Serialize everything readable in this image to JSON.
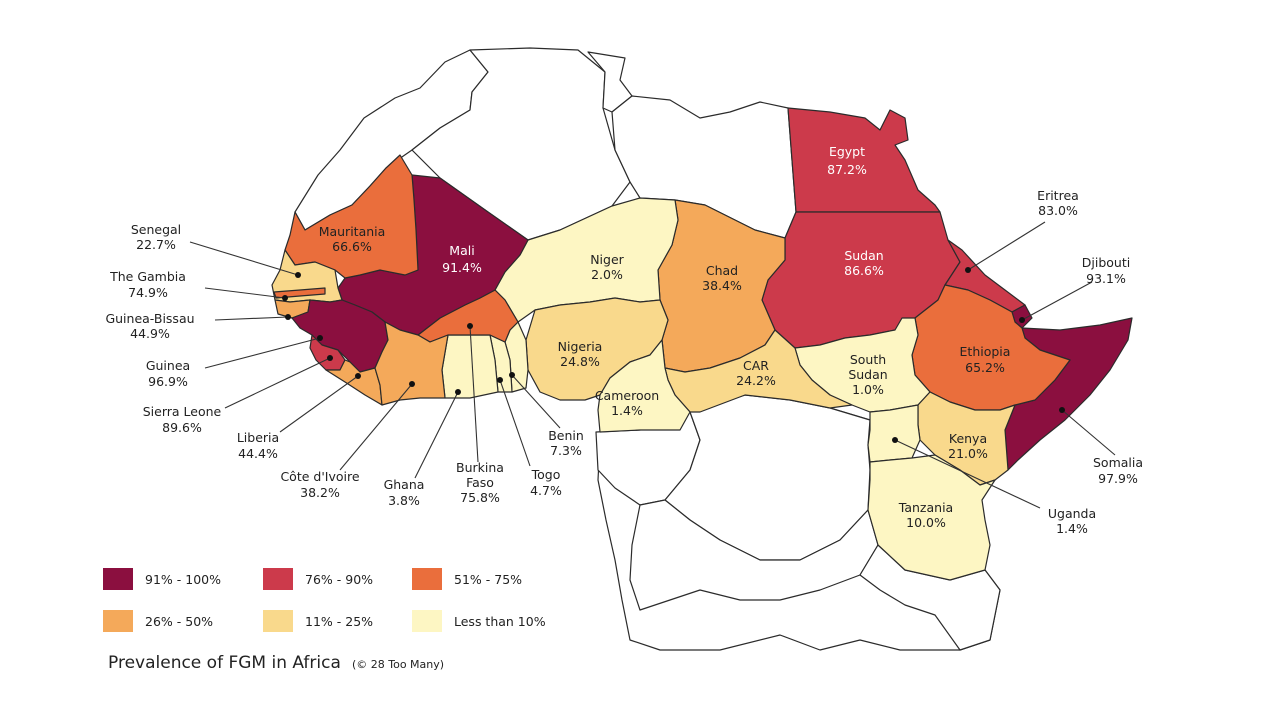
{
  "title": "Prevalence of FGM in Africa",
  "credit": "(© 28 Too Many)",
  "colors": {
    "c91_100": "#8b0f3f",
    "c76_90": "#cc3a4b",
    "c51_75": "#ea6e3c",
    "c26_50": "#f4a95a",
    "c11_25": "#f9d98c",
    "c0_10": "#fdf6c3"
  },
  "legend": [
    {
      "label": "91% - 100%",
      "color": "#8b0f3f"
    },
    {
      "label": "76% - 90%",
      "color": "#cc3a4b"
    },
    {
      "label": "51% - 75%",
      "color": "#ea6e3c"
    },
    {
      "label": "26% - 50%",
      "color": "#f4a95a"
    },
    {
      "label": "11% - 25%",
      "color": "#f9d98c"
    },
    {
      "label": "Less than 10%",
      "color": "#fdf6c3"
    }
  ],
  "countries": {
    "egypt": {
      "name": "Egypt",
      "value": "87.2%"
    },
    "sudan": {
      "name": "Sudan",
      "value": "86.6%"
    },
    "mali": {
      "name": "Mali",
      "value": "91.4%"
    },
    "mauritania": {
      "name": "Mauritania",
      "value": "66.6%"
    },
    "niger": {
      "name": "Niger",
      "value": "2.0%"
    },
    "chad": {
      "name": "Chad",
      "value": "38.4%"
    },
    "nigeria": {
      "name": "Nigeria",
      "value": "24.8%"
    },
    "cameroon": {
      "name": "Cameroon",
      "value": "1.4%"
    },
    "car": {
      "name": "CAR",
      "value": "24.2%"
    },
    "south_sudan": {
      "name1": "South",
      "name2": "Sudan",
      "value": "1.0%"
    },
    "ethiopia": {
      "name": "Ethiopia",
      "value": "65.2%"
    },
    "kenya": {
      "name": "Kenya",
      "value": "21.0%"
    },
    "tanzania": {
      "name": "Tanzania",
      "value": "10.0%"
    },
    "eritrea": {
      "name": "Eritrea",
      "value": "83.0%"
    },
    "djibouti": {
      "name": "Djibouti",
      "value": "93.1%"
    },
    "somalia": {
      "name": "Somalia",
      "value": "97.9%"
    },
    "uganda": {
      "name": "Uganda",
      "value": "1.4%"
    },
    "senegal": {
      "name": "Senegal",
      "value": "22.7%"
    },
    "gambia": {
      "name": "The Gambia",
      "value": "74.9%"
    },
    "guinea_bissau": {
      "name": "Guinea-Bissau",
      "value": "44.9%"
    },
    "guinea": {
      "name": "Guinea",
      "value": "96.9%"
    },
    "sierra_leone": {
      "name": "Sierra Leone",
      "value": "89.6%"
    },
    "liberia": {
      "name": "Liberia",
      "value": "44.4%"
    },
    "cote_divoire": {
      "name": "Côte d'Ivoire",
      "value": "38.2%"
    },
    "ghana": {
      "name": "Ghana",
      "value": "3.8%"
    },
    "burkina_faso": {
      "name1": "Burkina",
      "name2": "Faso",
      "value": "75.8%"
    },
    "togo": {
      "name": "Togo",
      "value": "4.7%"
    },
    "benin": {
      "name": "Benin",
      "value": "7.3%"
    }
  }
}
